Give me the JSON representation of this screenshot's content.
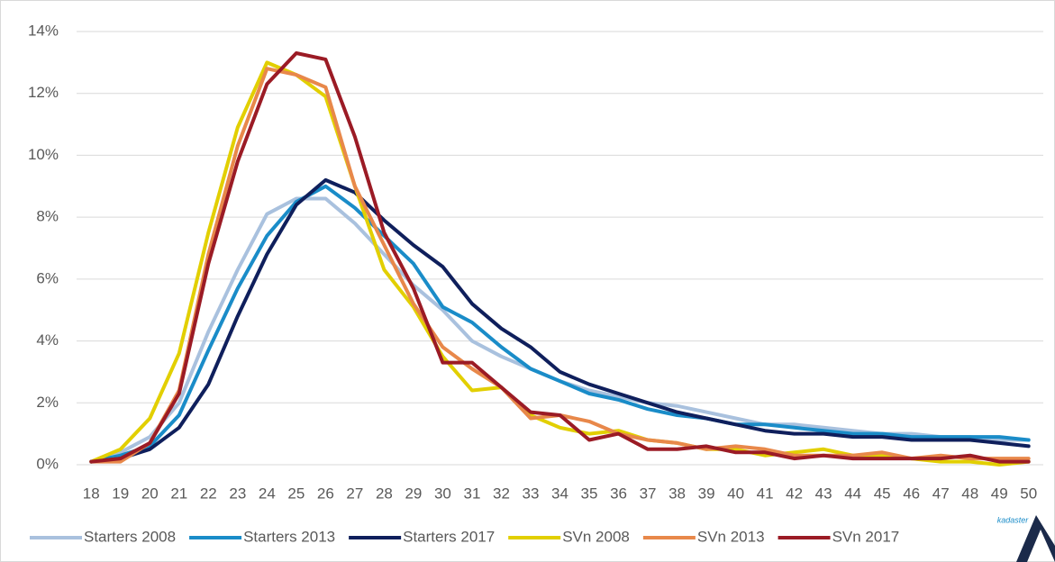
{
  "chart_data": {
    "type": "line",
    "categories": [
      "18",
      "19",
      "20",
      "21",
      "22",
      "23",
      "24",
      "25",
      "26",
      "27",
      "28",
      "29",
      "30",
      "31",
      "32",
      "33",
      "34",
      "35",
      "36",
      "37",
      "38",
      "39",
      "40",
      "41",
      "42",
      "43",
      "44",
      "45",
      "46",
      "47",
      "48",
      "49",
      "50"
    ],
    "ylim": [
      0,
      14
    ],
    "yticks": [
      {
        "value": 0,
        "label": "0%"
      },
      {
        "value": 2,
        "label": "2%"
      },
      {
        "value": 4,
        "label": "4%"
      },
      {
        "value": 6,
        "label": "6%"
      },
      {
        "value": 8,
        "label": "8%"
      },
      {
        "value": 10,
        "label": "10%"
      },
      {
        "value": 12,
        "label": "12%"
      },
      {
        "value": 14,
        "label": "14%"
      }
    ],
    "grid": true,
    "legend": "bottom",
    "watermark": "kadaster",
    "series": [
      {
        "name": "Starters 2008",
        "color": "#a9c1de",
        "values": [
          0.1,
          0.4,
          0.9,
          2.0,
          4.3,
          6.3,
          8.1,
          8.6,
          8.6,
          7.8,
          6.8,
          5.8,
          5.0,
          4.0,
          3.5,
          3.1,
          2.7,
          2.4,
          2.2,
          2.0,
          1.9,
          1.7,
          1.5,
          1.3,
          1.3,
          1.2,
          1.1,
          1.0,
          1.0,
          0.9,
          0.9,
          0.8,
          0.8
        ]
      },
      {
        "name": "Starters 2013",
        "color": "#1a8cc8",
        "values": [
          0.1,
          0.3,
          0.6,
          1.6,
          3.7,
          5.7,
          7.4,
          8.5,
          9.0,
          8.3,
          7.4,
          6.5,
          5.1,
          4.6,
          3.8,
          3.1,
          2.7,
          2.3,
          2.1,
          1.8,
          1.6,
          1.5,
          1.3,
          1.3,
          1.2,
          1.1,
          1.0,
          1.0,
          0.9,
          0.9,
          0.9,
          0.9,
          0.8
        ]
      },
      {
        "name": "Starters 2017",
        "color": "#0f1f5c",
        "values": [
          0.1,
          0.2,
          0.5,
          1.2,
          2.6,
          4.8,
          6.8,
          8.4,
          9.2,
          8.8,
          7.9,
          7.1,
          6.4,
          5.2,
          4.4,
          3.8,
          3.0,
          2.6,
          2.3,
          2.0,
          1.7,
          1.5,
          1.3,
          1.1,
          1.0,
          1.0,
          0.9,
          0.9,
          0.8,
          0.8,
          0.8,
          0.7,
          0.6
        ]
      },
      {
        "name": "SVn 2008",
        "color": "#e2cf00",
        "values": [
          0.1,
          0.5,
          1.5,
          3.6,
          7.5,
          10.9,
          13.0,
          12.6,
          11.9,
          9.0,
          6.3,
          5.1,
          3.5,
          2.4,
          2.5,
          1.6,
          1.2,
          1.0,
          1.1,
          0.8,
          0.7,
          0.5,
          0.5,
          0.3,
          0.4,
          0.5,
          0.3,
          0.3,
          0.2,
          0.1,
          0.1,
          0.0,
          0.1
        ]
      },
      {
        "name": "SVn 2013",
        "color": "#e8884a",
        "values": [
          0.1,
          0.1,
          0.7,
          2.4,
          6.8,
          10.3,
          12.8,
          12.6,
          12.2,
          9.0,
          7.1,
          5.2,
          3.8,
          3.1,
          2.5,
          1.5,
          1.6,
          1.4,
          1.0,
          0.8,
          0.7,
          0.5,
          0.6,
          0.5,
          0.3,
          0.3,
          0.3,
          0.4,
          0.2,
          0.3,
          0.2,
          0.2,
          0.2
        ]
      },
      {
        "name": "SVn 2017",
        "color": "#9b1b25",
        "values": [
          0.1,
          0.2,
          0.7,
          2.3,
          6.5,
          9.8,
          12.3,
          13.3,
          13.1,
          10.6,
          7.5,
          5.7,
          3.3,
          3.3,
          2.5,
          1.7,
          1.6,
          0.8,
          1.0,
          0.5,
          0.5,
          0.6,
          0.4,
          0.4,
          0.2,
          0.3,
          0.2,
          0.2,
          0.2,
          0.2,
          0.3,
          0.1,
          0.1
        ]
      }
    ]
  }
}
